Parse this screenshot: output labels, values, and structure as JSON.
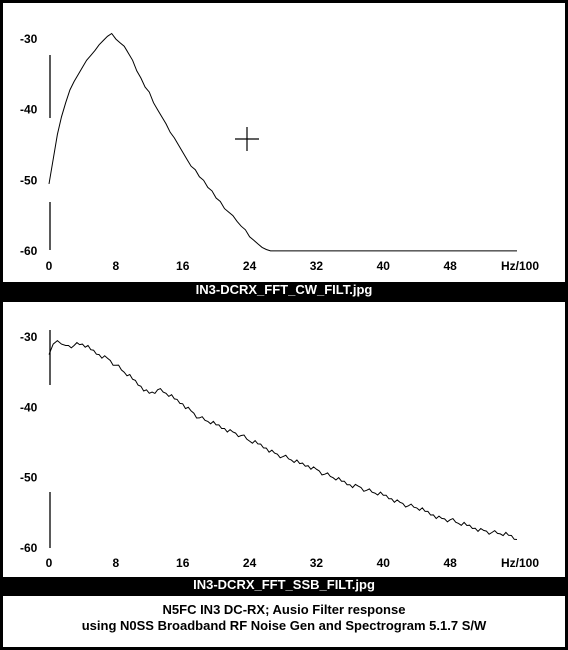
{
  "chart_data": [
    {
      "type": "line",
      "caption": "IN3-DCRX_FFT_CW_FILT.jpg",
      "xlabel": "Hz/100",
      "xlim": [
        0,
        56
      ],
      "ylim": [
        -61,
        -28
      ],
      "x_ticks": [
        "0",
        "8",
        "16",
        "24",
        "32",
        "40",
        "48"
      ],
      "y_ticks": [
        "-30",
        "-40",
        "-50",
        "-60"
      ],
      "grid": false,
      "series": [
        {
          "x": [
            0,
            0.5,
            1,
            1.5,
            2,
            2.5,
            3,
            3.5,
            4,
            4.5,
            5,
            5.5,
            6,
            6.5,
            7,
            7.5,
            8,
            8.5,
            9,
            9.5,
            10,
            10.5,
            11,
            11.5,
            12,
            12.5,
            13,
            13.5,
            14,
            14.5,
            15,
            15.5,
            16,
            16.5,
            17,
            17.5,
            18,
            18.5,
            19,
            19.5,
            20,
            20.5,
            21,
            21.5,
            22,
            22.5,
            23,
            23.5,
            24,
            24.5,
            25,
            25.5,
            26,
            26.5,
            27,
            27.5,
            28,
            30,
            32,
            36,
            40,
            44,
            48,
            52,
            56
          ],
          "y": [
            -50.5,
            -47,
            -43.5,
            -41,
            -39,
            -37.2,
            -36,
            -35,
            -34,
            -33,
            -32.3,
            -31.6,
            -30.8,
            -30.2,
            -29.6,
            -29.2,
            -30,
            -30.5,
            -31,
            -32,
            -33,
            -34.5,
            -35.5,
            -36.8,
            -37.5,
            -39,
            -40,
            -41,
            -42,
            -43.2,
            -44,
            -45,
            -46,
            -47,
            -48,
            -48.5,
            -49.5,
            -50,
            -51,
            -51.5,
            -52.5,
            -53,
            -54,
            -54.5,
            -55,
            -55.8,
            -56.5,
            -57,
            -58,
            -58.5,
            -59,
            -59.5,
            -59.8,
            -60,
            -60,
            -60,
            -60,
            -60,
            -60,
            -60,
            -60,
            -60,
            -60,
            -60,
            -60
          ]
        }
      ]
    },
    {
      "type": "line",
      "caption": "IN3-DCRX_FFT_SSB_FILT.jpg",
      "xlabel": "Hz/100",
      "xlim": [
        0,
        56
      ],
      "ylim": [
        -61,
        -28
      ],
      "x_ticks": [
        "0",
        "8",
        "16",
        "24",
        "32",
        "40",
        "48"
      ],
      "y_ticks": [
        "-30",
        "-40",
        "-50",
        "-60"
      ],
      "grid": false,
      "series": [
        {
          "x": [
            0,
            0.5,
            1,
            1.5,
            2,
            3,
            4,
            5,
            6,
            7,
            8,
            9,
            10,
            11,
            12,
            13,
            14,
            15,
            16,
            17,
            18,
            19,
            20,
            21,
            22,
            23,
            24,
            25,
            26,
            27,
            28,
            29,
            30,
            31,
            32,
            33,
            34,
            35,
            36,
            37,
            38,
            39,
            40,
            41,
            42,
            43,
            44,
            45,
            46,
            47,
            48,
            49,
            50,
            51,
            52,
            53,
            54,
            55,
            56
          ],
          "y": [
            -32.5,
            -31,
            -30.5,
            -31,
            -31.2,
            -31.2,
            -31,
            -31.8,
            -32.5,
            -33,
            -34,
            -35,
            -36,
            -37,
            -38,
            -37.5,
            -38,
            -38.8,
            -39.5,
            -40.5,
            -41.5,
            -42,
            -42.5,
            -43,
            -43.5,
            -44,
            -44.8,
            -45.2,
            -45.8,
            -46.5,
            -47,
            -47.5,
            -48,
            -48.3,
            -48.8,
            -49.5,
            -50,
            -50.5,
            -51,
            -51.2,
            -51.8,
            -52.2,
            -52.5,
            -53,
            -53.5,
            -54,
            -54.3,
            -54.8,
            -55.3,
            -55.8,
            -56,
            -56.5,
            -56.8,
            -57.2,
            -57.5,
            -57.8,
            -58,
            -58.2,
            -58.8
          ]
        }
      ]
    }
  ],
  "footer": {
    "line1": "N5FC IN3 DC-RX; Ausio Filter response",
    "line2": "using N0SS Broadband RF Noise Gen and Spectrogram 5.1.7 S/W"
  }
}
